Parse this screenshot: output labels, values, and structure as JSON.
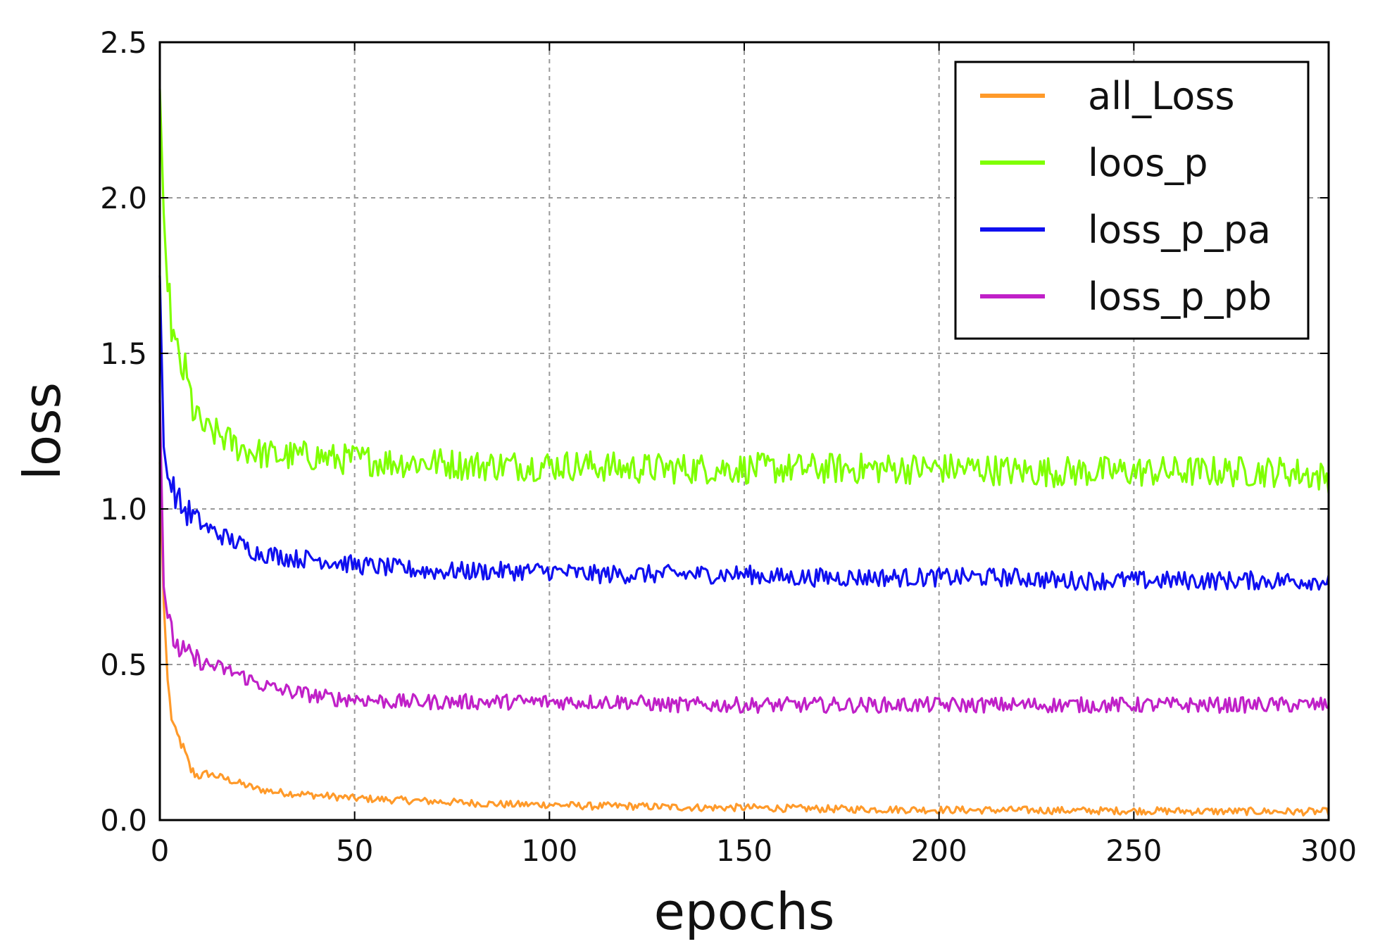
{
  "chart_data": {
    "type": "line",
    "title": "",
    "xlabel": "epochs",
    "ylabel": "loss",
    "xlim": [
      0,
      300
    ],
    "ylim": [
      0,
      2.5
    ],
    "xticks": [
      0,
      50,
      100,
      150,
      200,
      250,
      300
    ],
    "xtick_labels": [
      "0",
      "50",
      "100",
      "150",
      "200",
      "250",
      "300"
    ],
    "yticks": [
      0.0,
      0.5,
      1.0,
      1.5,
      2.0,
      2.5
    ],
    "ytick_labels": [
      "0.0",
      "0.5",
      "1.0",
      "1.5",
      "2.0",
      "2.5"
    ],
    "grid": true,
    "legend_position": "top-right",
    "x": [
      0,
      1,
      2,
      3,
      4,
      5,
      6,
      8,
      10,
      12,
      15,
      20,
      25,
      30,
      35,
      40,
      45,
      50,
      60,
      70,
      80,
      90,
      100,
      110,
      120,
      130,
      140,
      150,
      160,
      170,
      180,
      190,
      200,
      210,
      220,
      230,
      240,
      250,
      260,
      270,
      280,
      290,
      300
    ],
    "series": [
      {
        "name": "all_Loss",
        "color": "#ff9a2a",
        "noise": 0.012,
        "values": [
          1.15,
          0.7,
          0.45,
          0.33,
          0.28,
          0.26,
          0.23,
          0.16,
          0.14,
          0.15,
          0.14,
          0.12,
          0.1,
          0.09,
          0.085,
          0.08,
          0.075,
          0.07,
          0.065,
          0.06,
          0.055,
          0.05,
          0.05,
          0.045,
          0.045,
          0.042,
          0.04,
          0.04,
          0.038,
          0.036,
          0.035,
          0.034,
          0.033,
          0.032,
          0.032,
          0.031,
          0.03,
          0.03,
          0.029,
          0.028,
          0.028,
          0.027,
          0.027
        ]
      },
      {
        "name": "loos_p",
        "color": "#7fff00",
        "noise": 0.05,
        "values": [
          2.35,
          1.95,
          1.7,
          1.6,
          1.5,
          1.47,
          1.45,
          1.35,
          1.28,
          1.25,
          1.24,
          1.2,
          1.18,
          1.17,
          1.17,
          1.17,
          1.16,
          1.16,
          1.15,
          1.15,
          1.14,
          1.14,
          1.14,
          1.14,
          1.13,
          1.13,
          1.13,
          1.13,
          1.13,
          1.13,
          1.13,
          1.13,
          1.13,
          1.13,
          1.12,
          1.12,
          1.12,
          1.12,
          1.12,
          1.12,
          1.12,
          1.12,
          1.1
        ]
      },
      {
        "name": "loss_p_pa",
        "color": "#1010f0",
        "noise": 0.03,
        "values": [
          1.75,
          1.2,
          1.1,
          1.08,
          1.05,
          1.02,
          1.0,
          0.98,
          0.96,
          0.94,
          0.92,
          0.89,
          0.86,
          0.85,
          0.84,
          0.84,
          0.83,
          0.82,
          0.81,
          0.8,
          0.8,
          0.8,
          0.8,
          0.79,
          0.79,
          0.79,
          0.79,
          0.79,
          0.78,
          0.78,
          0.78,
          0.78,
          0.78,
          0.78,
          0.78,
          0.77,
          0.77,
          0.77,
          0.77,
          0.77,
          0.77,
          0.77,
          0.77
        ]
      },
      {
        "name": "loss_p_pb",
        "color": "#c020c8",
        "noise": 0.025,
        "values": [
          1.35,
          0.75,
          0.65,
          0.6,
          0.57,
          0.55,
          0.54,
          0.52,
          0.51,
          0.5,
          0.49,
          0.47,
          0.44,
          0.42,
          0.41,
          0.4,
          0.39,
          0.39,
          0.38,
          0.38,
          0.38,
          0.38,
          0.38,
          0.38,
          0.38,
          0.37,
          0.37,
          0.37,
          0.37,
          0.37,
          0.37,
          0.37,
          0.37,
          0.37,
          0.37,
          0.37,
          0.37,
          0.37,
          0.37,
          0.37,
          0.37,
          0.37,
          0.37
        ]
      }
    ]
  }
}
